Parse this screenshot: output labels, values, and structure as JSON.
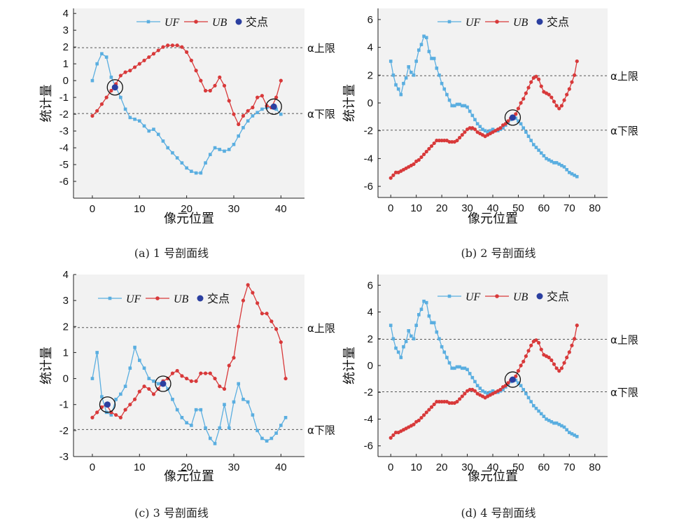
{
  "colors": {
    "uf": "#5aaee0",
    "ub": "#d8393a",
    "cross": "#2b3fa0",
    "panel_bg": "#f2f2f2",
    "threshold": "#555555"
  },
  "legend": {
    "uf": "UF",
    "ub": "UB",
    "cross": "交点"
  },
  "threshold_labels": {
    "upper": "α上限",
    "lower": "α下限"
  },
  "chart_data": [
    {
      "type": "line",
      "caption": "(a) 1 号剖面线",
      "xlabel": "像元位置",
      "ylabel": "统计量",
      "xlim": [
        -4,
        45
      ],
      "ylim": [
        -7,
        4.3
      ],
      "xticks": [
        0,
        10,
        20,
        30,
        40
      ],
      "yticks": [
        4,
        3,
        2,
        1,
        0,
        -1,
        -2,
        -3,
        -4,
        -5,
        -6
      ],
      "thresholds": [
        1.96,
        -1.96
      ],
      "x": [
        0,
        1,
        2,
        3,
        4,
        5,
        6,
        7,
        8,
        9,
        10,
        11,
        12,
        13,
        14,
        15,
        16,
        17,
        18,
        19,
        20,
        21,
        22,
        23,
        24,
        25,
        26,
        27,
        28,
        29,
        30,
        31,
        32,
        33,
        34,
        35,
        36,
        37,
        38,
        39,
        40
      ],
      "series": [
        {
          "name": "UF",
          "values": [
            0.0,
            1.0,
            1.6,
            1.4,
            0.2,
            -0.4,
            -1.0,
            -1.7,
            -2.2,
            -2.3,
            -2.4,
            -2.7,
            -3.0,
            -2.9,
            -3.2,
            -3.6,
            -4.0,
            -4.3,
            -4.6,
            -4.9,
            -5.2,
            -5.4,
            -5.5,
            -5.5,
            -4.9,
            -4.4,
            -4.0,
            -4.1,
            -4.2,
            -4.1,
            -3.8,
            -3.3,
            -2.8,
            -2.4,
            -2.1,
            -1.9,
            -1.7,
            -1.6,
            -1.6,
            -1.7,
            -2.0
          ]
        },
        {
          "name": "UB",
          "values": [
            -2.1,
            -1.8,
            -1.4,
            -1.0,
            -0.6,
            -0.2,
            0.3,
            0.5,
            0.6,
            0.8,
            1.0,
            1.2,
            1.4,
            1.6,
            1.8,
            2.0,
            2.1,
            2.1,
            2.1,
            2.0,
            1.7,
            1.2,
            0.6,
            0.0,
            -0.6,
            -0.6,
            -0.3,
            0.2,
            -0.3,
            -1.2,
            -2.0,
            -2.6,
            -2.1,
            -1.8,
            -1.6,
            -1.0,
            -0.9,
            -1.5,
            -1.6,
            -1.0,
            0.0
          ]
        }
      ],
      "crossings": [
        [
          4.8,
          -0.4
        ],
        [
          38.5,
          -1.55
        ]
      ]
    },
    {
      "type": "line",
      "caption": "(b) 2 号剖面线",
      "xlabel": "像元位置",
      "ylabel": "统计量",
      "xlim": [
        -5,
        85
      ],
      "ylim": [
        -6.8,
        6.8
      ],
      "xticks": [
        0,
        10,
        20,
        30,
        40,
        50,
        60,
        70,
        80
      ],
      "yticks": [
        6,
        4,
        2,
        0,
        -2,
        -4,
        -6
      ],
      "thresholds": [
        1.96,
        -1.96
      ],
      "x": [
        0,
        1,
        2,
        3,
        4,
        5,
        6,
        7,
        8,
        9,
        10,
        11,
        12,
        13,
        14,
        15,
        16,
        17,
        18,
        19,
        20,
        21,
        22,
        23,
        24,
        25,
        26,
        27,
        28,
        29,
        30,
        31,
        32,
        33,
        34,
        35,
        36,
        37,
        38,
        39,
        40,
        41,
        42,
        43,
        44,
        45,
        46,
        47,
        48,
        49,
        50,
        51,
        52,
        53,
        54,
        55,
        56,
        57,
        58,
        59,
        60,
        61,
        62,
        63,
        64,
        65,
        66,
        67,
        68,
        69,
        70,
        71,
        72,
        73
      ],
      "series": [
        {
          "name": "UF",
          "values": [
            3.0,
            2.0,
            1.3,
            1.0,
            0.6,
            1.4,
            1.8,
            2.6,
            2.2,
            2.0,
            3.0,
            3.8,
            4.2,
            4.8,
            4.7,
            3.7,
            3.2,
            3.2,
            2.5,
            2.0,
            1.4,
            1.0,
            0.6,
            0.2,
            -0.2,
            -0.2,
            -0.1,
            -0.1,
            -0.2,
            -0.2,
            -0.3,
            -0.6,
            -0.9,
            -1.2,
            -1.5,
            -1.7,
            -1.9,
            -2.0,
            -2.1,
            -2.0,
            -1.9,
            -2.0,
            -2.0,
            -1.9,
            -1.8,
            -1.6,
            -1.4,
            -1.2,
            -1.0,
            -1.1,
            -1.3,
            -1.5,
            -1.8,
            -2.1,
            -2.4,
            -2.7,
            -3.0,
            -3.2,
            -3.4,
            -3.6,
            -3.8,
            -4.0,
            -4.1,
            -4.2,
            -4.3,
            -4.3,
            -4.4,
            -4.5,
            -4.6,
            -4.8,
            -5.0,
            -5.1,
            -5.2,
            -5.3
          ]
        },
        {
          "name": "UB",
          "values": [
            -5.4,
            -5.2,
            -5.0,
            -5.0,
            -4.9,
            -4.8,
            -4.7,
            -4.6,
            -4.5,
            -4.4,
            -4.2,
            -4.1,
            -3.9,
            -3.7,
            -3.5,
            -3.3,
            -3.1,
            -2.9,
            -2.7,
            -2.7,
            -2.7,
            -2.7,
            -2.7,
            -2.8,
            -2.8,
            -2.8,
            -2.7,
            -2.5,
            -2.3,
            -2.1,
            -1.9,
            -1.8,
            -1.8,
            -1.9,
            -2.1,
            -2.2,
            -2.3,
            -2.4,
            -2.3,
            -2.2,
            -2.1,
            -2.0,
            -1.9,
            -1.8,
            -1.6,
            -1.5,
            -1.3,
            -1.1,
            -1.0,
            -0.8,
            -0.4,
            0.0,
            0.3,
            0.7,
            1.1,
            1.5,
            1.8,
            1.9,
            1.7,
            1.2,
            0.8,
            0.7,
            0.6,
            0.4,
            0.1,
            -0.2,
            -0.4,
            -0.2,
            0.2,
            0.6,
            1.0,
            1.5,
            2.0,
            3.0
          ]
        }
      ],
      "crossings": [
        [
          47.8,
          -1.05
        ]
      ]
    },
    {
      "type": "line",
      "caption": "(c) 3 号剖面线",
      "xlabel": "像元位置",
      "ylabel": "统计量",
      "xlim": [
        -4,
        45
      ],
      "ylim": [
        -3,
        4
      ],
      "xticks": [
        0,
        10,
        20,
        30,
        40
      ],
      "yticks": [
        4,
        3,
        2,
        1,
        0,
        -1,
        -2,
        -3
      ],
      "thresholds": [
        1.96,
        -1.96
      ],
      "x": [
        0,
        1,
        2,
        3,
        4,
        5,
        6,
        7,
        8,
        9,
        10,
        11,
        12,
        13,
        14,
        15,
        16,
        17,
        18,
        19,
        20,
        21,
        22,
        23,
        24,
        25,
        26,
        27,
        28,
        29,
        30,
        31,
        32,
        33,
        34,
        35,
        36,
        37,
        38,
        39,
        40,
        41
      ],
      "series": [
        {
          "name": "UF",
          "values": [
            0.0,
            1.0,
            -0.7,
            -1.3,
            -1.4,
            -0.8,
            -0.6,
            -0.3,
            0.4,
            1.2,
            0.7,
            0.4,
            0.0,
            -0.1,
            -0.2,
            -0.1,
            -0.4,
            -0.8,
            -1.2,
            -1.5,
            -1.7,
            -1.8,
            -1.2,
            -1.2,
            -1.9,
            -2.3,
            -2.5,
            -1.9,
            -1.0,
            -1.9,
            -0.9,
            -0.2,
            -0.8,
            -0.9,
            -1.4,
            -2.0,
            -2.3,
            -2.4,
            -2.3,
            -2.1,
            -1.8,
            -1.5
          ]
        },
        {
          "name": "UB",
          "values": [
            -1.5,
            -1.3,
            -1.1,
            -1.0,
            -1.3,
            -1.4,
            -1.5,
            -1.2,
            -1.0,
            -0.8,
            -0.5,
            -0.3,
            -0.4,
            -0.6,
            -0.4,
            -0.1,
            0.0,
            0.2,
            0.3,
            0.1,
            0.0,
            -0.1,
            -0.1,
            0.2,
            0.2,
            0.2,
            0.0,
            -0.3,
            -0.4,
            0.5,
            0.8,
            2.0,
            3.0,
            3.6,
            3.3,
            2.9,
            2.5,
            2.5,
            2.2,
            1.9,
            1.4,
            0.0
          ]
        }
      ],
      "crossings": [
        [
          3.2,
          -1.0
        ],
        [
          15.0,
          -0.2
        ]
      ]
    },
    {
      "type": "line",
      "caption": "(d) 4 号剖面线",
      "xlabel": "像元位置",
      "ylabel": "统计量",
      "xlim": [
        -5,
        85
      ],
      "ylim": [
        -6.8,
        6.8
      ],
      "xticks": [
        0,
        10,
        20,
        30,
        40,
        50,
        60,
        70,
        80
      ],
      "yticks": [
        6,
        4,
        2,
        0,
        -2,
        -4,
        -6
      ],
      "thresholds": [
        1.96,
        -1.96
      ],
      "x": [
        0,
        1,
        2,
        3,
        4,
        5,
        6,
        7,
        8,
        9,
        10,
        11,
        12,
        13,
        14,
        15,
        16,
        17,
        18,
        19,
        20,
        21,
        22,
        23,
        24,
        25,
        26,
        27,
        28,
        29,
        30,
        31,
        32,
        33,
        34,
        35,
        36,
        37,
        38,
        39,
        40,
        41,
        42,
        43,
        44,
        45,
        46,
        47,
        48,
        49,
        50,
        51,
        52,
        53,
        54,
        55,
        56,
        57,
        58,
        59,
        60,
        61,
        62,
        63,
        64,
        65,
        66,
        67,
        68,
        69,
        70,
        71,
        72,
        73
      ],
      "series": [
        {
          "name": "UF",
          "values": [
            3.0,
            2.0,
            1.3,
            1.0,
            0.6,
            1.4,
            1.8,
            2.6,
            2.2,
            2.0,
            3.0,
            3.8,
            4.2,
            4.8,
            4.7,
            3.7,
            3.2,
            3.2,
            2.5,
            2.0,
            1.4,
            1.0,
            0.6,
            0.2,
            -0.2,
            -0.2,
            -0.1,
            -0.1,
            -0.2,
            -0.2,
            -0.3,
            -0.6,
            -0.9,
            -1.2,
            -1.5,
            -1.7,
            -1.9,
            -2.0,
            -2.1,
            -2.0,
            -1.9,
            -2.0,
            -2.0,
            -1.9,
            -1.8,
            -1.6,
            -1.4,
            -1.2,
            -1.0,
            -1.1,
            -1.3,
            -1.5,
            -1.8,
            -2.1,
            -2.4,
            -2.7,
            -3.0,
            -3.2,
            -3.4,
            -3.6,
            -3.8,
            -4.0,
            -4.1,
            -4.2,
            -4.3,
            -4.3,
            -4.4,
            -4.5,
            -4.6,
            -4.8,
            -5.0,
            -5.1,
            -5.2,
            -5.3
          ]
        },
        {
          "name": "UB",
          "values": [
            -5.4,
            -5.2,
            -5.0,
            -5.0,
            -4.9,
            -4.8,
            -4.7,
            -4.6,
            -4.5,
            -4.4,
            -4.2,
            -4.1,
            -3.9,
            -3.7,
            -3.5,
            -3.3,
            -3.1,
            -2.9,
            -2.7,
            -2.7,
            -2.7,
            -2.7,
            -2.7,
            -2.8,
            -2.8,
            -2.8,
            -2.7,
            -2.5,
            -2.3,
            -2.1,
            -1.9,
            -1.8,
            -1.8,
            -1.9,
            -2.1,
            -2.2,
            -2.3,
            -2.4,
            -2.3,
            -2.2,
            -2.1,
            -2.0,
            -1.9,
            -1.8,
            -1.6,
            -1.5,
            -1.3,
            -1.1,
            -1.0,
            -0.8,
            -0.4,
            0.0,
            0.3,
            0.7,
            1.1,
            1.5,
            1.8,
            1.9,
            1.7,
            1.2,
            0.8,
            0.7,
            0.6,
            0.4,
            0.1,
            -0.2,
            -0.4,
            -0.2,
            0.2,
            0.6,
            1.0,
            1.5,
            2.0,
            3.0
          ]
        }
      ],
      "crossings": [
        [
          47.8,
          -1.05
        ]
      ]
    }
  ]
}
